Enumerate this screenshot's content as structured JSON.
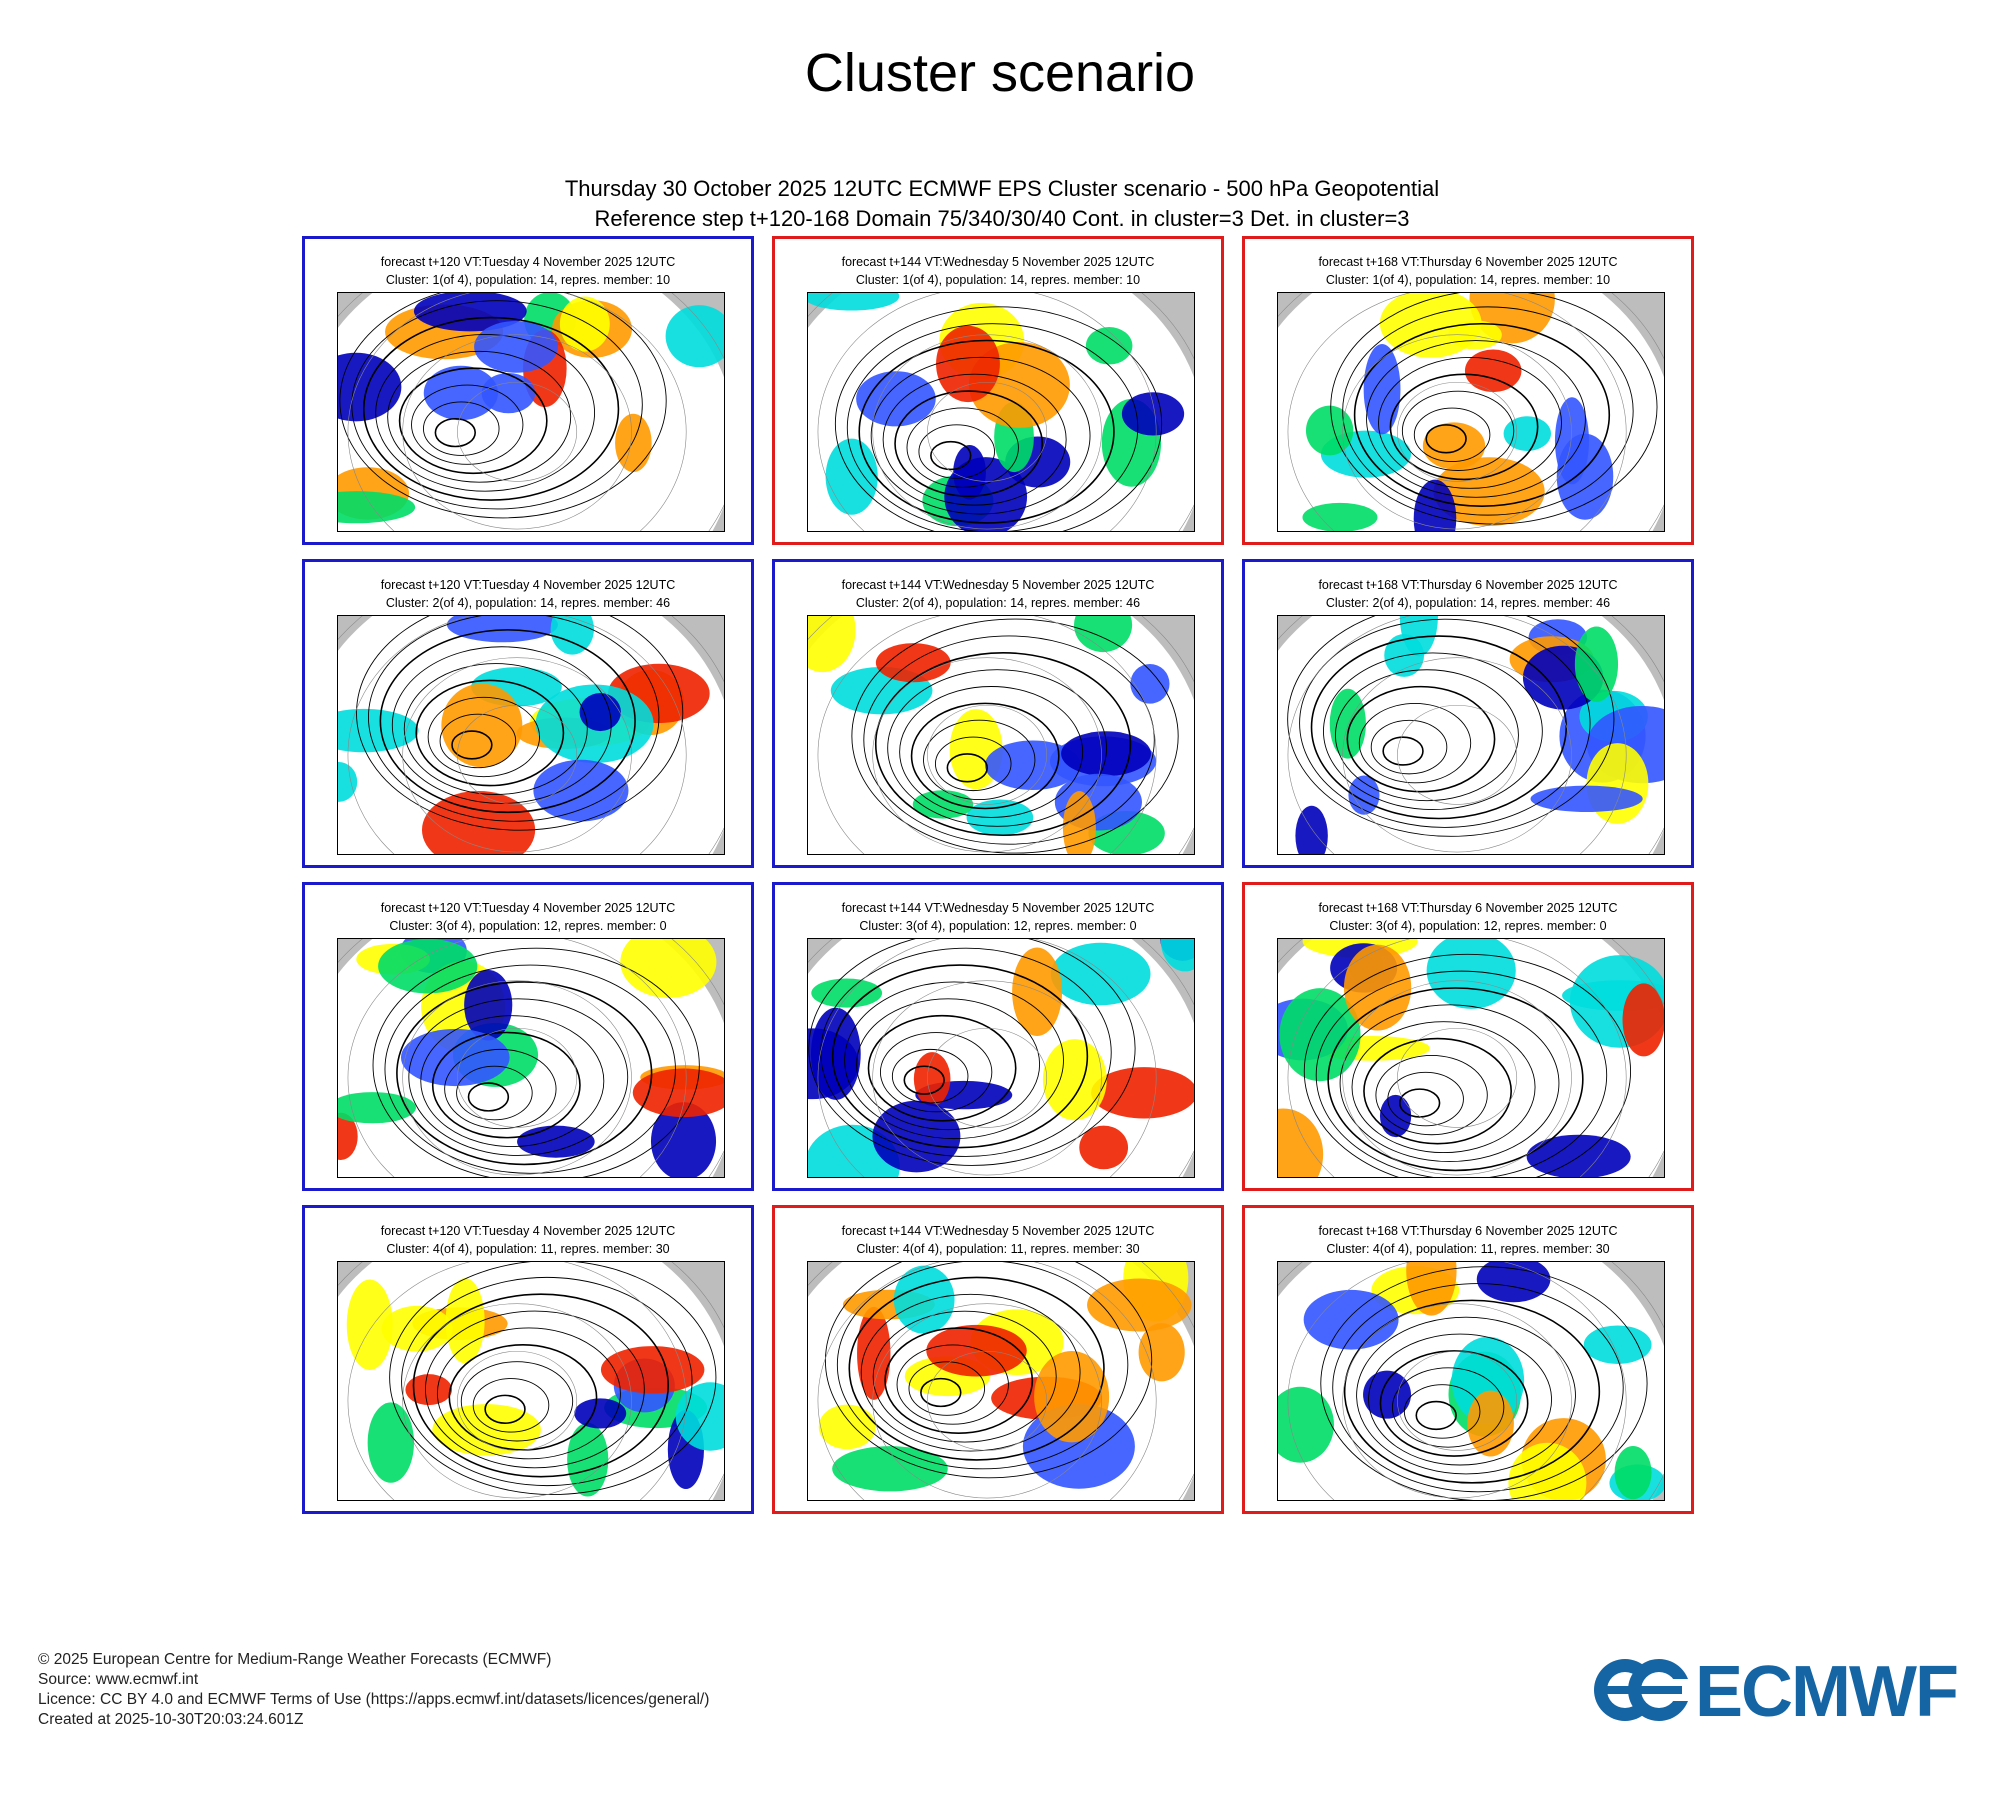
{
  "page_title": "Cluster scenario",
  "subtitle_line1": "Thursday 30 October 2025 12UTC ECMWF EPS Cluster scenario - 500 hPa Geopotential",
  "subtitle_line2": "Reference step t+120-168 Domain 75/340/30/40 Cont. in cluster=3 Det. in cluster=3",
  "colors": {
    "blue_frame": "#1a1acc",
    "red_frame": "#e01b1b",
    "brand": "#1565a5"
  },
  "panels": [
    {
      "title": "forecast t+120 VT:Tuesday 4 November 2025 12UTC",
      "subtitle": "Cluster: 1(of 4), population: 14, repres. member: 10",
      "frame": "blue"
    },
    {
      "title": "forecast t+144 VT:Wednesday 5 November 2025 12UTC",
      "subtitle": "Cluster: 1(of 4), population: 14, repres. member: 10",
      "frame": "red"
    },
    {
      "title": "forecast t+168 VT:Thursday 6 November 2025 12UTC",
      "subtitle": "Cluster: 1(of 4), population: 14, repres. member: 10",
      "frame": "red"
    },
    {
      "title": "forecast t+120 VT:Tuesday 4 November 2025 12UTC",
      "subtitle": "Cluster: 2(of 4), population: 14, repres. member: 46",
      "frame": "blue"
    },
    {
      "title": "forecast t+144 VT:Wednesday 5 November 2025 12UTC",
      "subtitle": "Cluster: 2(of 4), population: 14, repres. member: 46",
      "frame": "blue"
    },
    {
      "title": "forecast t+168 VT:Thursday 6 November 2025 12UTC",
      "subtitle": "Cluster: 2(of 4), population: 14, repres. member: 46",
      "frame": "blue"
    },
    {
      "title": "forecast t+120 VT:Tuesday 4 November 2025 12UTC",
      "subtitle": "Cluster: 3(of 4), population: 12, repres. member: 0",
      "frame": "blue"
    },
    {
      "title": "forecast t+144 VT:Wednesday 5 November 2025 12UTC",
      "subtitle": "Cluster: 3(of 4), population: 12, repres. member: 0",
      "frame": "blue"
    },
    {
      "title": "forecast t+168 VT:Thursday 6 November 2025 12UTC",
      "subtitle": "Cluster: 3(of 4), population: 12, repres. member: 0",
      "frame": "red"
    },
    {
      "title": "forecast t+120 VT:Tuesday 4 November 2025 12UTC",
      "subtitle": "Cluster: 4(of 4), population: 11, repres. member: 30",
      "frame": "blue"
    },
    {
      "title": "forecast t+144 VT:Wednesday 5 November 2025 12UTC",
      "subtitle": "Cluster: 4(of 4), population: 11, repres. member: 30",
      "frame": "red"
    },
    {
      "title": "forecast t+168 VT:Thursday 6 November 2025 12UTC",
      "subtitle": "Cluster: 4(of 4), population: 11, repres. member: 30",
      "frame": "red"
    }
  ],
  "footer": {
    "copyright": "© 2025 European Centre for Medium-Range Weather Forecasts (ECMWF)",
    "source": "Source: www.ecmwf.int",
    "licence": "Licence: CC BY 4.0 and ECMWF Terms of Use (https://apps.ecmwf.int/datasets/licences/general/)",
    "created": "Created at 2025-10-30T20:03:24.601Z"
  },
  "logo_text": "ECMWF"
}
